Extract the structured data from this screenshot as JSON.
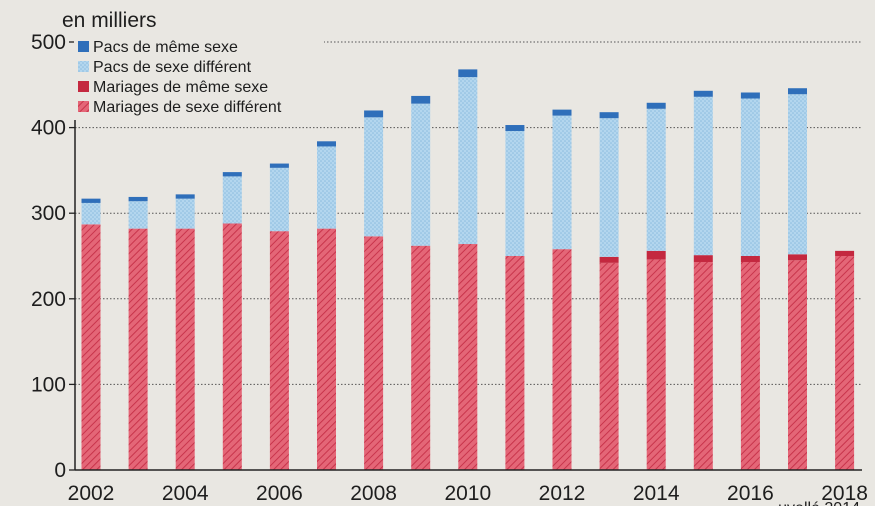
{
  "chart_data": {
    "type": "bar",
    "stacked": true,
    "unit_label": "en milliers",
    "source_note": "...uvellé 2014",
    "x": [
      2002,
      2003,
      2004,
      2005,
      2006,
      2007,
      2008,
      2009,
      2010,
      2011,
      2012,
      2013,
      2014,
      2015,
      2016,
      2017,
      2018
    ],
    "x_tick_labels": [
      "2002",
      "2004",
      "2006",
      "2008",
      "2010",
      "2012",
      "2014",
      "2016",
      "2018"
    ],
    "ylim": [
      0,
      500
    ],
    "y_ticks": [
      0,
      100,
      200,
      300,
      400,
      500
    ],
    "grid": "dotted horizontal",
    "legend_position": "top-left",
    "series": [
      {
        "name": "Mariages de sexe différent",
        "color": "#d6455c",
        "pattern": "hatched",
        "values": [
          287,
          282,
          282,
          288,
          279,
          282,
          273,
          262,
          264,
          250,
          258,
          242,
          246,
          243,
          243,
          245,
          250
        ]
      },
      {
        "name": "Mariages de même sexe",
        "color": "#c4283f",
        "pattern": "solid",
        "values": [
          0,
          0,
          0,
          0,
          0,
          0,
          0,
          0,
          0,
          0,
          0,
          7,
          10,
          8,
          7,
          7,
          6
        ]
      },
      {
        "name": "Pacs de sexe différent",
        "color": "#a8cde8",
        "pattern": "dotted",
        "values": [
          25,
          32,
          35,
          55,
          74,
          96,
          139,
          166,
          195,
          146,
          156,
          162,
          166,
          185,
          184,
          187,
          0
        ]
      },
      {
        "name": "Pacs de même sexe",
        "color": "#2f6fba",
        "pattern": "solid",
        "values": [
          5,
          5,
          5,
          5,
          5,
          6,
          8,
          9,
          9,
          7,
          7,
          7,
          7,
          7,
          7,
          7,
          0
        ]
      }
    ],
    "legend_order": [
      "Pacs de même sexe",
      "Pacs de sexe différent",
      "Mariages de même sexe",
      "Mariages de sexe différent"
    ]
  }
}
